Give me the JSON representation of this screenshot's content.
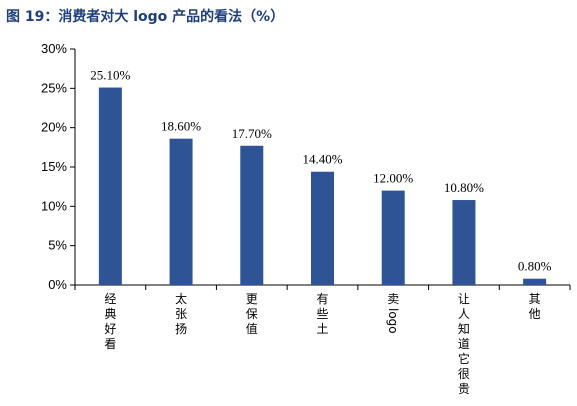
{
  "figure_title": "图 19：消费者对大 logo 产品的看法（%）",
  "chart_data": {
    "type": "bar",
    "title": "图 19：消费者对大 logo 产品的看法（%）",
    "xlabel": "",
    "ylabel": "",
    "ylim": [
      0,
      30
    ],
    "yticks": [
      "0%",
      "5%",
      "10%",
      "15%",
      "20%",
      "25%",
      "30%"
    ],
    "grid": false,
    "legend": "none",
    "categories": [
      "经典好看",
      "太张扬",
      "更保值",
      "有些土",
      "卖logo",
      "让人知道它很贵",
      "其他"
    ],
    "values": [
      25.1,
      18.6,
      17.7,
      14.4,
      12.0,
      10.8,
      0.8
    ],
    "data_labels": [
      "25.10%",
      "18.60%",
      "17.70%",
      "14.40%",
      "12.00%",
      "10.80%",
      "0.80%"
    ],
    "bar_color": "#2f5496"
  }
}
